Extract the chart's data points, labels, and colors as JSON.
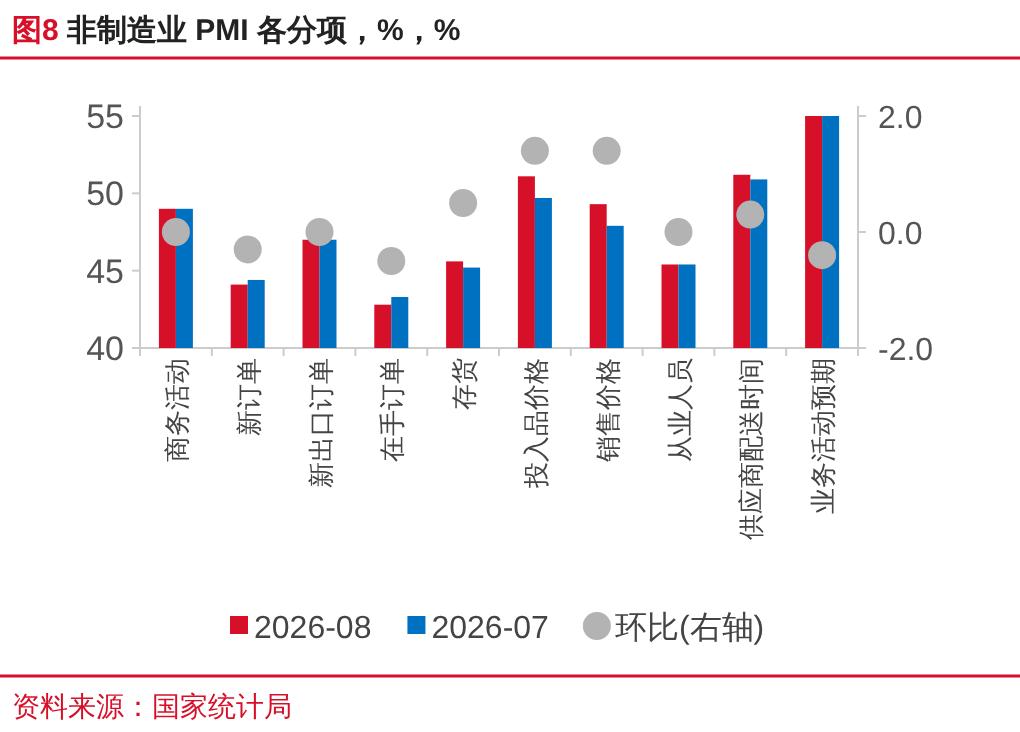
{
  "chart_data": {
    "type": "bar",
    "title": "图8 非制造业 PMI 各分项，%，%",
    "categories": [
      "商务活动",
      "新订单",
      "新出口订单",
      "在手订单",
      "存货",
      "投入品价格",
      "销售价格",
      "从业人员",
      "供应商配送时间",
      "业务活动预期"
    ],
    "series": [
      {
        "name": "2026-08",
        "color": "#d7102a",
        "values": [
          49.0,
          44.1,
          47.0,
          42.8,
          45.6,
          51.1,
          49.3,
          45.4,
          51.2,
          55.0
        ]
      },
      {
        "name": "2026-07",
        "color": "#0070c0",
        "values": [
          49.0,
          44.4,
          47.0,
          43.3,
          45.2,
          49.7,
          47.9,
          45.4,
          50.9,
          55.0
        ]
      },
      {
        "name": "环比(右轴)",
        "type": "scatter",
        "axis": "y2",
        "marker": "circle",
        "color": "#b3b3b3",
        "values": [
          0.0,
          -0.3,
          0.0,
          -0.5,
          0.5,
          1.4,
          1.4,
          0.0,
          0.3,
          -0.4
        ]
      }
    ],
    "ylim": [
      40,
      55
    ],
    "yticks": [
      40,
      45,
      50,
      55
    ],
    "y2lim": [
      -2,
      2
    ],
    "y2ticks": [
      {
        "value": -2,
        "label": "-2.0"
      },
      {
        "value": 0,
        "label": "0.0"
      },
      {
        "value": 2,
        "label": "2.0"
      }
    ],
    "legend": "bottom",
    "grid": false,
    "annotations": [
      "资料来源：国家统计局"
    ]
  }
}
